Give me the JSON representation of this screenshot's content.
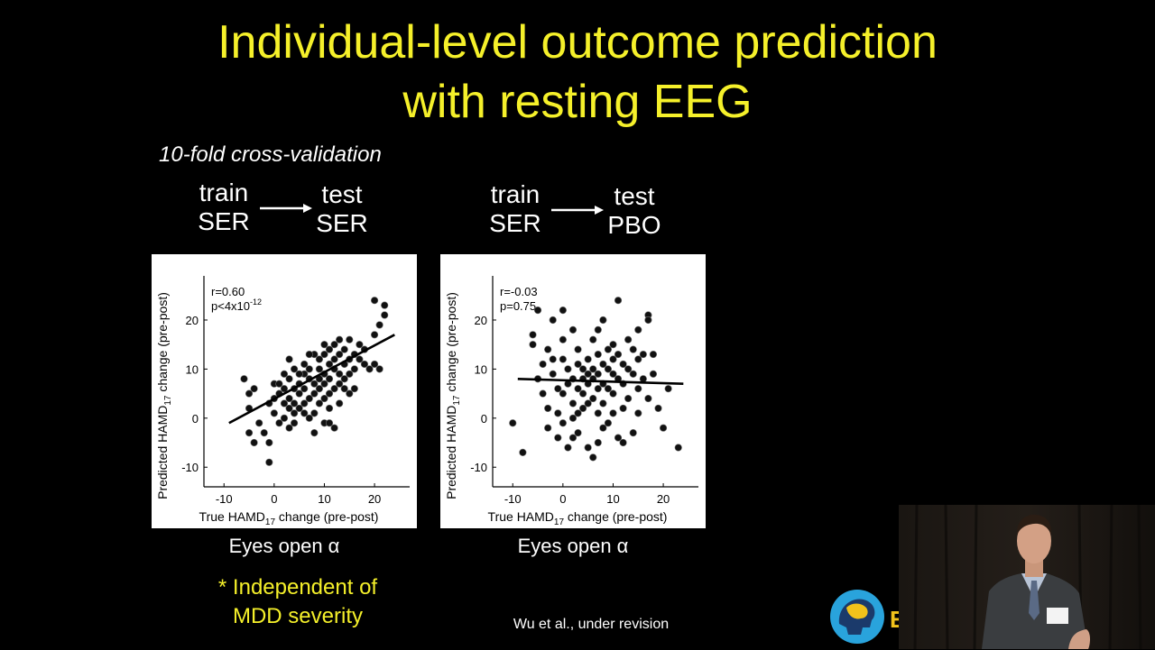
{
  "slide": {
    "title_line1": "Individual-level outcome prediction",
    "title_line2": "with resting EEG",
    "subtitle": "10-fold cross-validation",
    "left_flow": {
      "train_label": "train",
      "train_group": "SER",
      "test_label": "test",
      "test_group": "SER"
    },
    "right_flow": {
      "train_label": "train",
      "train_group": "SER",
      "test_label": "test",
      "test_group": "PBO"
    },
    "left_caption": "Eyes open α",
    "right_caption": "Eyes open α",
    "note_line1": "* Independent of",
    "note_line2": "MDD severity",
    "citation": "Wu et al., under revision",
    "logo_letter": "E",
    "colors": {
      "title": "#f5f02a",
      "background": "#000000",
      "text": "#ffffff"
    }
  },
  "chart_data": [
    {
      "type": "scatter",
      "xlabel_main": "True HAMD",
      "xlabel_sub": "17",
      "xlabel_tail": " change (pre-post)",
      "ylabel_main": "Predicted HAMD",
      "ylabel_sub": "17",
      "ylabel_tail": " change (pre-post)",
      "stat_r": "r=0.60",
      "stat_p": "p<4x10",
      "stat_p_exp": "-12",
      "xticks": [
        -10,
        0,
        10,
        20
      ],
      "yticks": [
        -10,
        0,
        10,
        20
      ],
      "xlim": [
        -14,
        27
      ],
      "ylim": [
        -14,
        29
      ],
      "fit_line": [
        [
          -9,
          -1
        ],
        [
          24,
          17
        ]
      ],
      "points": [
        [
          -6,
          8
        ],
        [
          -5,
          5
        ],
        [
          -4,
          6
        ],
        [
          -5,
          2
        ],
        [
          -3,
          -1
        ],
        [
          -5,
          -3
        ],
        [
          -4,
          -5
        ],
        [
          -2,
          -3
        ],
        [
          -1,
          -5
        ],
        [
          -1,
          -9
        ],
        [
          -1,
          3
        ],
        [
          0,
          7
        ],
        [
          0,
          4
        ],
        [
          0,
          1
        ],
        [
          1,
          -1
        ],
        [
          1,
          5
        ],
        [
          2,
          6
        ],
        [
          2,
          3
        ],
        [
          2,
          0
        ],
        [
          3,
          8
        ],
        [
          3,
          4
        ],
        [
          3,
          2
        ],
        [
          3,
          -2
        ],
        [
          4,
          10
        ],
        [
          4,
          6
        ],
        [
          4,
          3
        ],
        [
          4,
          1
        ],
        [
          5,
          7
        ],
        [
          5,
          5
        ],
        [
          5,
          2
        ],
        [
          6,
          9
        ],
        [
          6,
          11
        ],
        [
          6,
          6
        ],
        [
          6,
          3
        ],
        [
          7,
          8
        ],
        [
          7,
          10
        ],
        [
          7,
          4
        ],
        [
          7,
          0
        ],
        [
          8,
          13
        ],
        [
          8,
          7
        ],
        [
          8,
          5
        ],
        [
          8,
          1
        ],
        [
          9,
          12
        ],
        [
          9,
          10
        ],
        [
          9,
          8
        ],
        [
          9,
          6
        ],
        [
          9,
          3
        ],
        [
          10,
          15
        ],
        [
          10,
          13
        ],
        [
          10,
          9
        ],
        [
          10,
          7
        ],
        [
          10,
          4
        ],
        [
          10,
          -1
        ],
        [
          11,
          14
        ],
        [
          11,
          11
        ],
        [
          11,
          8
        ],
        [
          11,
          5
        ],
        [
          11,
          2
        ],
        [
          12,
          15
        ],
        [
          12,
          12
        ],
        [
          12,
          10
        ],
        [
          12,
          6
        ],
        [
          12,
          -2
        ],
        [
          13,
          13
        ],
        [
          13,
          9
        ],
        [
          13,
          7
        ],
        [
          13,
          3
        ],
        [
          14,
          14
        ],
        [
          14,
          11
        ],
        [
          14,
          8
        ],
        [
          15,
          16
        ],
        [
          15,
          12
        ],
        [
          15,
          9
        ],
        [
          15,
          5
        ],
        [
          16,
          13
        ],
        [
          16,
          10
        ],
        [
          16,
          6
        ],
        [
          17,
          15
        ],
        [
          17,
          12
        ],
        [
          18,
          14
        ],
        [
          18,
          11
        ],
        [
          19,
          10
        ],
        [
          20,
          11
        ],
        [
          20,
          17
        ],
        [
          21,
          19
        ],
        [
          21,
          10
        ],
        [
          22,
          21
        ],
        [
          22,
          23
        ],
        [
          20,
          24
        ],
        [
          7,
          13
        ],
        [
          5,
          9
        ],
        [
          3,
          12
        ],
        [
          2,
          9
        ],
        [
          1,
          7
        ],
        [
          4,
          -1
        ],
        [
          6,
          1
        ],
        [
          8,
          -3
        ],
        [
          13,
          16
        ],
        [
          14,
          6
        ],
        [
          11,
          -1
        ]
      ]
    },
    {
      "type": "scatter",
      "xlabel_main": "True HAMD",
      "xlabel_sub": "17",
      "xlabel_tail": " change (pre-post)",
      "ylabel_main": "Predicted HAMD",
      "ylabel_sub": "17",
      "ylabel_tail": " change (pre-post)",
      "stat_r": "r=-0.03",
      "stat_p": "p=0.75",
      "stat_p_exp": "",
      "xticks": [
        -10,
        0,
        10,
        20
      ],
      "yticks": [
        -10,
        0,
        10,
        20
      ],
      "xlim": [
        -14,
        27
      ],
      "ylim": [
        -14,
        29
      ],
      "fit_line": [
        [
          -9,
          8
        ],
        [
          24,
          7
        ]
      ],
      "points": [
        [
          -10,
          -1
        ],
        [
          -8,
          -7
        ],
        [
          -6,
          17
        ],
        [
          -6,
          15
        ],
        [
          -5,
          22
        ],
        [
          -5,
          8
        ],
        [
          -4,
          11
        ],
        [
          -4,
          5
        ],
        [
          -3,
          2
        ],
        [
          -3,
          -2
        ],
        [
          -2,
          20
        ],
        [
          -2,
          12
        ],
        [
          -2,
          9
        ],
        [
          -1,
          6
        ],
        [
          -1,
          1
        ],
        [
          0,
          22
        ],
        [
          0,
          16
        ],
        [
          0,
          12
        ],
        [
          0,
          5
        ],
        [
          0,
          -1
        ],
        [
          1,
          10
        ],
        [
          1,
          7
        ],
        [
          1,
          -6
        ],
        [
          2,
          18
        ],
        [
          2,
          8
        ],
        [
          2,
          3
        ],
        [
          2,
          0
        ],
        [
          3,
          11
        ],
        [
          3,
          6
        ],
        [
          3,
          1
        ],
        [
          3,
          -3
        ],
        [
          4,
          10
        ],
        [
          4,
          8
        ],
        [
          4,
          5
        ],
        [
          4,
          2
        ],
        [
          5,
          12
        ],
        [
          5,
          9
        ],
        [
          5,
          7
        ],
        [
          5,
          -6
        ],
        [
          6,
          10
        ],
        [
          6,
          8
        ],
        [
          6,
          4
        ],
        [
          6,
          -8
        ],
        [
          7,
          13
        ],
        [
          7,
          9
        ],
        [
          7,
          6
        ],
        [
          7,
          1
        ],
        [
          7,
          -5
        ],
        [
          8,
          20
        ],
        [
          8,
          11
        ],
        [
          8,
          7
        ],
        [
          8,
          3
        ],
        [
          9,
          14
        ],
        [
          9,
          10
        ],
        [
          9,
          6
        ],
        [
          9,
          -1
        ],
        [
          10,
          15
        ],
        [
          10,
          9
        ],
        [
          10,
          5
        ],
        [
          10,
          1
        ],
        [
          11,
          24
        ],
        [
          11,
          13
        ],
        [
          11,
          8
        ],
        [
          11,
          -4
        ],
        [
          12,
          11
        ],
        [
          12,
          7
        ],
        [
          12,
          2
        ],
        [
          13,
          16
        ],
        [
          13,
          10
        ],
        [
          13,
          4
        ],
        [
          14,
          14
        ],
        [
          14,
          9
        ],
        [
          14,
          -3
        ],
        [
          15,
          12
        ],
        [
          15,
          6
        ],
        [
          15,
          1
        ],
        [
          16,
          13
        ],
        [
          16,
          8
        ],
        [
          17,
          21
        ],
        [
          17,
          20
        ],
        [
          17,
          4
        ],
        [
          18,
          13
        ],
        [
          18,
          9
        ],
        [
          19,
          2
        ],
        [
          20,
          -2
        ],
        [
          21,
          6
        ],
        [
          23,
          -6
        ],
        [
          -1,
          -4
        ],
        [
          3,
          14
        ],
        [
          6,
          16
        ],
        [
          5,
          3
        ],
        [
          8,
          -2
        ],
        [
          12,
          -5
        ],
        [
          15,
          18
        ],
        [
          2,
          -4
        ],
        [
          -3,
          14
        ],
        [
          10,
          12
        ],
        [
          7,
          18
        ]
      ]
    }
  ]
}
